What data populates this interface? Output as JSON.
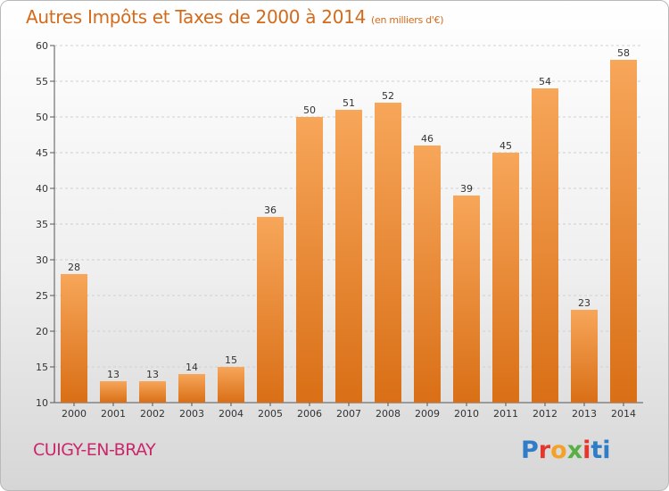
{
  "title": "Autres Impôts et Taxes de 2000 à 2014",
  "unit": "(en milliers d'€)",
  "place": "CUIGY-EN-BRAY",
  "brand": [
    "P",
    "r",
    "o",
    "x",
    "i",
    "ti"
  ],
  "chart_data": {
    "type": "bar",
    "categories": [
      "2000",
      "2001",
      "2002",
      "2003",
      "2004",
      "2005",
      "2006",
      "2007",
      "2008",
      "2009",
      "2010",
      "2011",
      "2012",
      "2013",
      "2014"
    ],
    "values": [
      28,
      13,
      13,
      14,
      15,
      36,
      50,
      51,
      52,
      46,
      39,
      45,
      54,
      23,
      58
    ],
    "title": "Autres Impôts et Taxes de 2000 à 2014",
    "xlabel": "",
    "ylabel": "",
    "ylim": [
      10,
      60
    ],
    "yticks": [
      10,
      15,
      20,
      25,
      30,
      35,
      40,
      45,
      50,
      55,
      60
    ],
    "grid": true,
    "bar_color": "#f08a2a"
  }
}
